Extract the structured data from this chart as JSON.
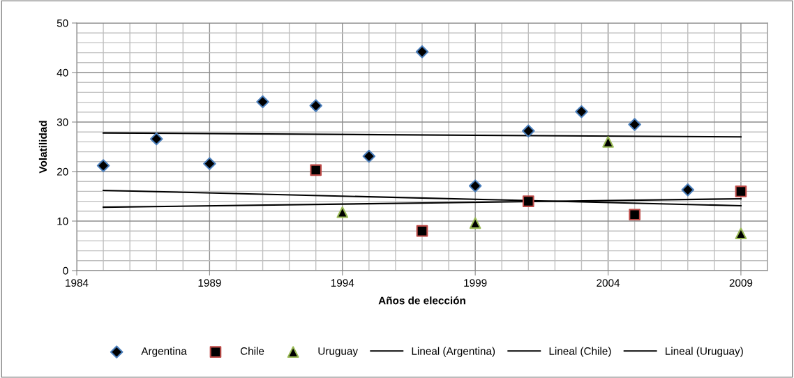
{
  "chart_data": {
    "type": "scatter",
    "xlabel": "Años de elección",
    "ylabel": "Volatilidad",
    "xlim": [
      1984,
      2010
    ],
    "xticks": [
      1984,
      1989,
      1994,
      1999,
      2004,
      2009
    ],
    "ylim": [
      0,
      50
    ],
    "yticks": [
      0,
      10,
      20,
      30,
      40,
      50
    ],
    "grid": true,
    "legend": "bottom",
    "series": [
      {
        "name": "Argentina",
        "marker": "diamond",
        "color": "#4a7ebb",
        "x": [
          1985,
          1987,
          1989,
          1991,
          1993,
          1995,
          1997,
          1999,
          2001,
          2003,
          2005,
          2007
        ],
        "values": [
          21.2,
          26.6,
          21.6,
          34.1,
          33.3,
          23.1,
          44.2,
          17.1,
          28.2,
          32.1,
          29.5,
          16.3
        ]
      },
      {
        "name": "Chile",
        "marker": "square",
        "color": "#be4b48",
        "x": [
          1993,
          1997,
          2001,
          2005,
          2009
        ],
        "values": [
          20.3,
          8.0,
          14.0,
          11.3,
          16.0
        ]
      },
      {
        "name": "Uruguay",
        "marker": "triangle",
        "color": "#98b954",
        "x": [
          1994,
          1999,
          2004,
          2009
        ],
        "values": [
          11.8,
          9.6,
          26.0,
          7.5
        ]
      },
      {
        "name": "Lineal (Argentina)",
        "type": "line",
        "marker": "none",
        "color": "#000000",
        "x": [
          1985,
          2009
        ],
        "values": [
          27.8,
          27.0
        ]
      },
      {
        "name": "Lineal (Chile)",
        "type": "line",
        "marker": "none",
        "color": "#000000",
        "x": [
          1985,
          2009
        ],
        "values": [
          16.2,
          13.1
        ]
      },
      {
        "name": "Lineal (Uruguay)",
        "type": "line",
        "marker": "none",
        "color": "#000000",
        "x": [
          1985,
          2009
        ],
        "values": [
          12.8,
          14.5
        ]
      }
    ]
  }
}
